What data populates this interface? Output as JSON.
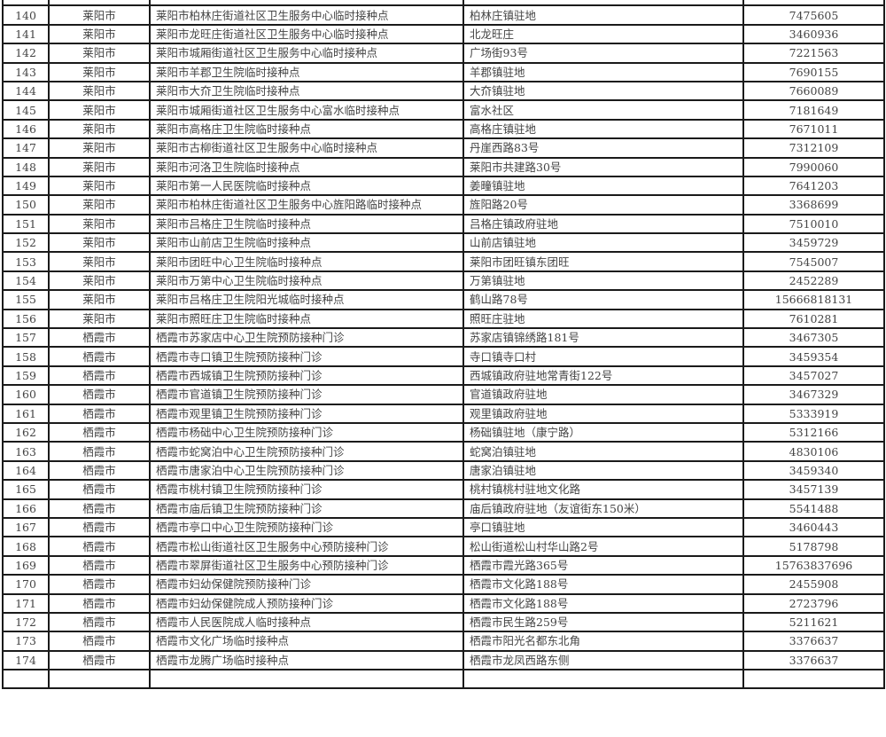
{
  "table": {
    "rows": [
      [
        "140",
        "莱阳市",
        "莱阳市柏林庄街道社区卫生服务中心临时接种点",
        "柏林庄镇驻地",
        "7475605"
      ],
      [
        "141",
        "莱阳市",
        "莱阳市龙旺庄街道社区卫生服务中心临时接种点",
        "北龙旺庄",
        "3460936"
      ],
      [
        "142",
        "莱阳市",
        "莱阳市城厢街道社区卫生服务中心临时接种点",
        "广场街93号",
        "7221563"
      ],
      [
        "143",
        "莱阳市",
        "莱阳市羊郡卫生院临时接种点",
        "羊郡镇驻地",
        "7690155"
      ],
      [
        "144",
        "莱阳市",
        "莱阳市大夼卫生院临时接种点",
        "大夼镇驻地",
        "7660089"
      ],
      [
        "145",
        "莱阳市",
        "莱阳市城厢街道社区卫生服务中心富水临时接种点",
        "富水社区",
        "7181649"
      ],
      [
        "146",
        "莱阳市",
        "莱阳市高格庄卫生院临时接种点",
        "高格庄镇驻地",
        "7671011"
      ],
      [
        "147",
        "莱阳市",
        "莱阳市古柳街道社区卫生服务中心临时接种点",
        "丹崖西路83号",
        "7312109"
      ],
      [
        "148",
        "莱阳市",
        "莱阳市河洛卫生院临时接种点",
        "莱阳市共建路30号",
        "7990060"
      ],
      [
        "149",
        "莱阳市",
        "莱阳市第一人民医院临时接种点",
        "姜疃镇驻地",
        "7641203"
      ],
      [
        "150",
        "莱阳市",
        "莱阳市柏林庄街道社区卫生服务中心旌阳路临时接种点",
        "旌阳路20号",
        "3368699"
      ],
      [
        "151",
        "莱阳市",
        "莱阳市吕格庄卫生院临时接种点",
        "吕格庄镇政府驻地",
        "7510010"
      ],
      [
        "152",
        "莱阳市",
        "莱阳市山前店卫生院临时接种点",
        "山前店镇驻地",
        "3459729"
      ],
      [
        "153",
        "莱阳市",
        "莱阳市团旺中心卫生院临时接种点",
        "莱阳市团旺镇东团旺",
        "7545007"
      ],
      [
        "154",
        "莱阳市",
        "莱阳市万第中心卫生院临时接种点",
        "万第镇驻地",
        "2452289"
      ],
      [
        "155",
        "莱阳市",
        "莱阳市吕格庄卫生院阳光城临时接种点",
        "鹤山路78号",
        "15666818131"
      ],
      [
        "156",
        "莱阳市",
        "莱阳市照旺庄卫生院临时接种点",
        "照旺庄驻地",
        "7610281"
      ],
      [
        "157",
        "栖霞市",
        "栖霞市苏家店中心卫生院预防接种门诊",
        "苏家店镇锦绣路181号",
        "3467305"
      ],
      [
        "158",
        "栖霞市",
        "栖霞市寺口镇卫生院预防接种门诊",
        "寺口镇寺口村",
        "3459354"
      ],
      [
        "159",
        "栖霞市",
        "栖霞市西城镇卫生院预防接种门诊",
        "西城镇政府驻地常青街122号",
        "3457027"
      ],
      [
        "160",
        "栖霞市",
        "栖霞市官道镇卫生院预防接种门诊",
        "官道镇政府驻地",
        "3467329"
      ],
      [
        "161",
        "栖霞市",
        "栖霞市观里镇卫生院预防接种门诊",
        "观里镇政府驻地",
        "5333919"
      ],
      [
        "162",
        "栖霞市",
        "栖霞市杨础中心卫生院预防接种门诊",
        "杨础镇驻地（康宁路）",
        "5312166"
      ],
      [
        "163",
        "栖霞市",
        "栖霞市蛇窝泊中心卫生院预防接种门诊",
        "蛇窝泊镇驻地",
        "4830106"
      ],
      [
        "164",
        "栖霞市",
        "栖霞市唐家泊中心卫生院预防接种门诊",
        "唐家泊镇驻地",
        "3459340"
      ],
      [
        "165",
        "栖霞市",
        "栖霞市桃村镇卫生院预防接种门诊",
        "桃村镇桃村驻地文化路",
        "3457139"
      ],
      [
        "166",
        "栖霞市",
        "栖霞市庙后镇卫生院预防接种门诊",
        "庙后镇政府驻地（友谊街东150米）",
        "5541488"
      ],
      [
        "167",
        "栖霞市",
        "栖霞市亭口中心卫生院预防接种门诊",
        "亭口镇驻地",
        "3460443"
      ],
      [
        "168",
        "栖霞市",
        "栖霞市松山街道社区卫生服务中心预防接种门诊",
        "松山街道松山村华山路2号",
        "5178798"
      ],
      [
        "169",
        "栖霞市",
        "栖霞市翠屏街道社区卫生服务中心预防接种门诊",
        "栖霞市霞光路365号",
        "15763837696"
      ],
      [
        "170",
        "栖霞市",
        "栖霞市妇幼保健院预防接种门诊",
        "栖霞市文化路188号",
        "2455908"
      ],
      [
        "171",
        "栖霞市",
        "栖霞市妇幼保健院成人预防接种门诊",
        "栖霞市文化路188号",
        "2723796"
      ],
      [
        "172",
        "栖霞市",
        "栖霞市人民医院成人临时接种点",
        "栖霞市民生路259号",
        "5211621"
      ],
      [
        "173",
        "栖霞市",
        "栖霞市文化广场临时接种点",
        "栖霞市阳光名都东北角",
        "3376637"
      ],
      [
        "174",
        "栖霞市",
        "栖霞市龙腾广场临时接种点",
        "栖霞市龙凤西路东侧",
        "3376637"
      ]
    ]
  }
}
